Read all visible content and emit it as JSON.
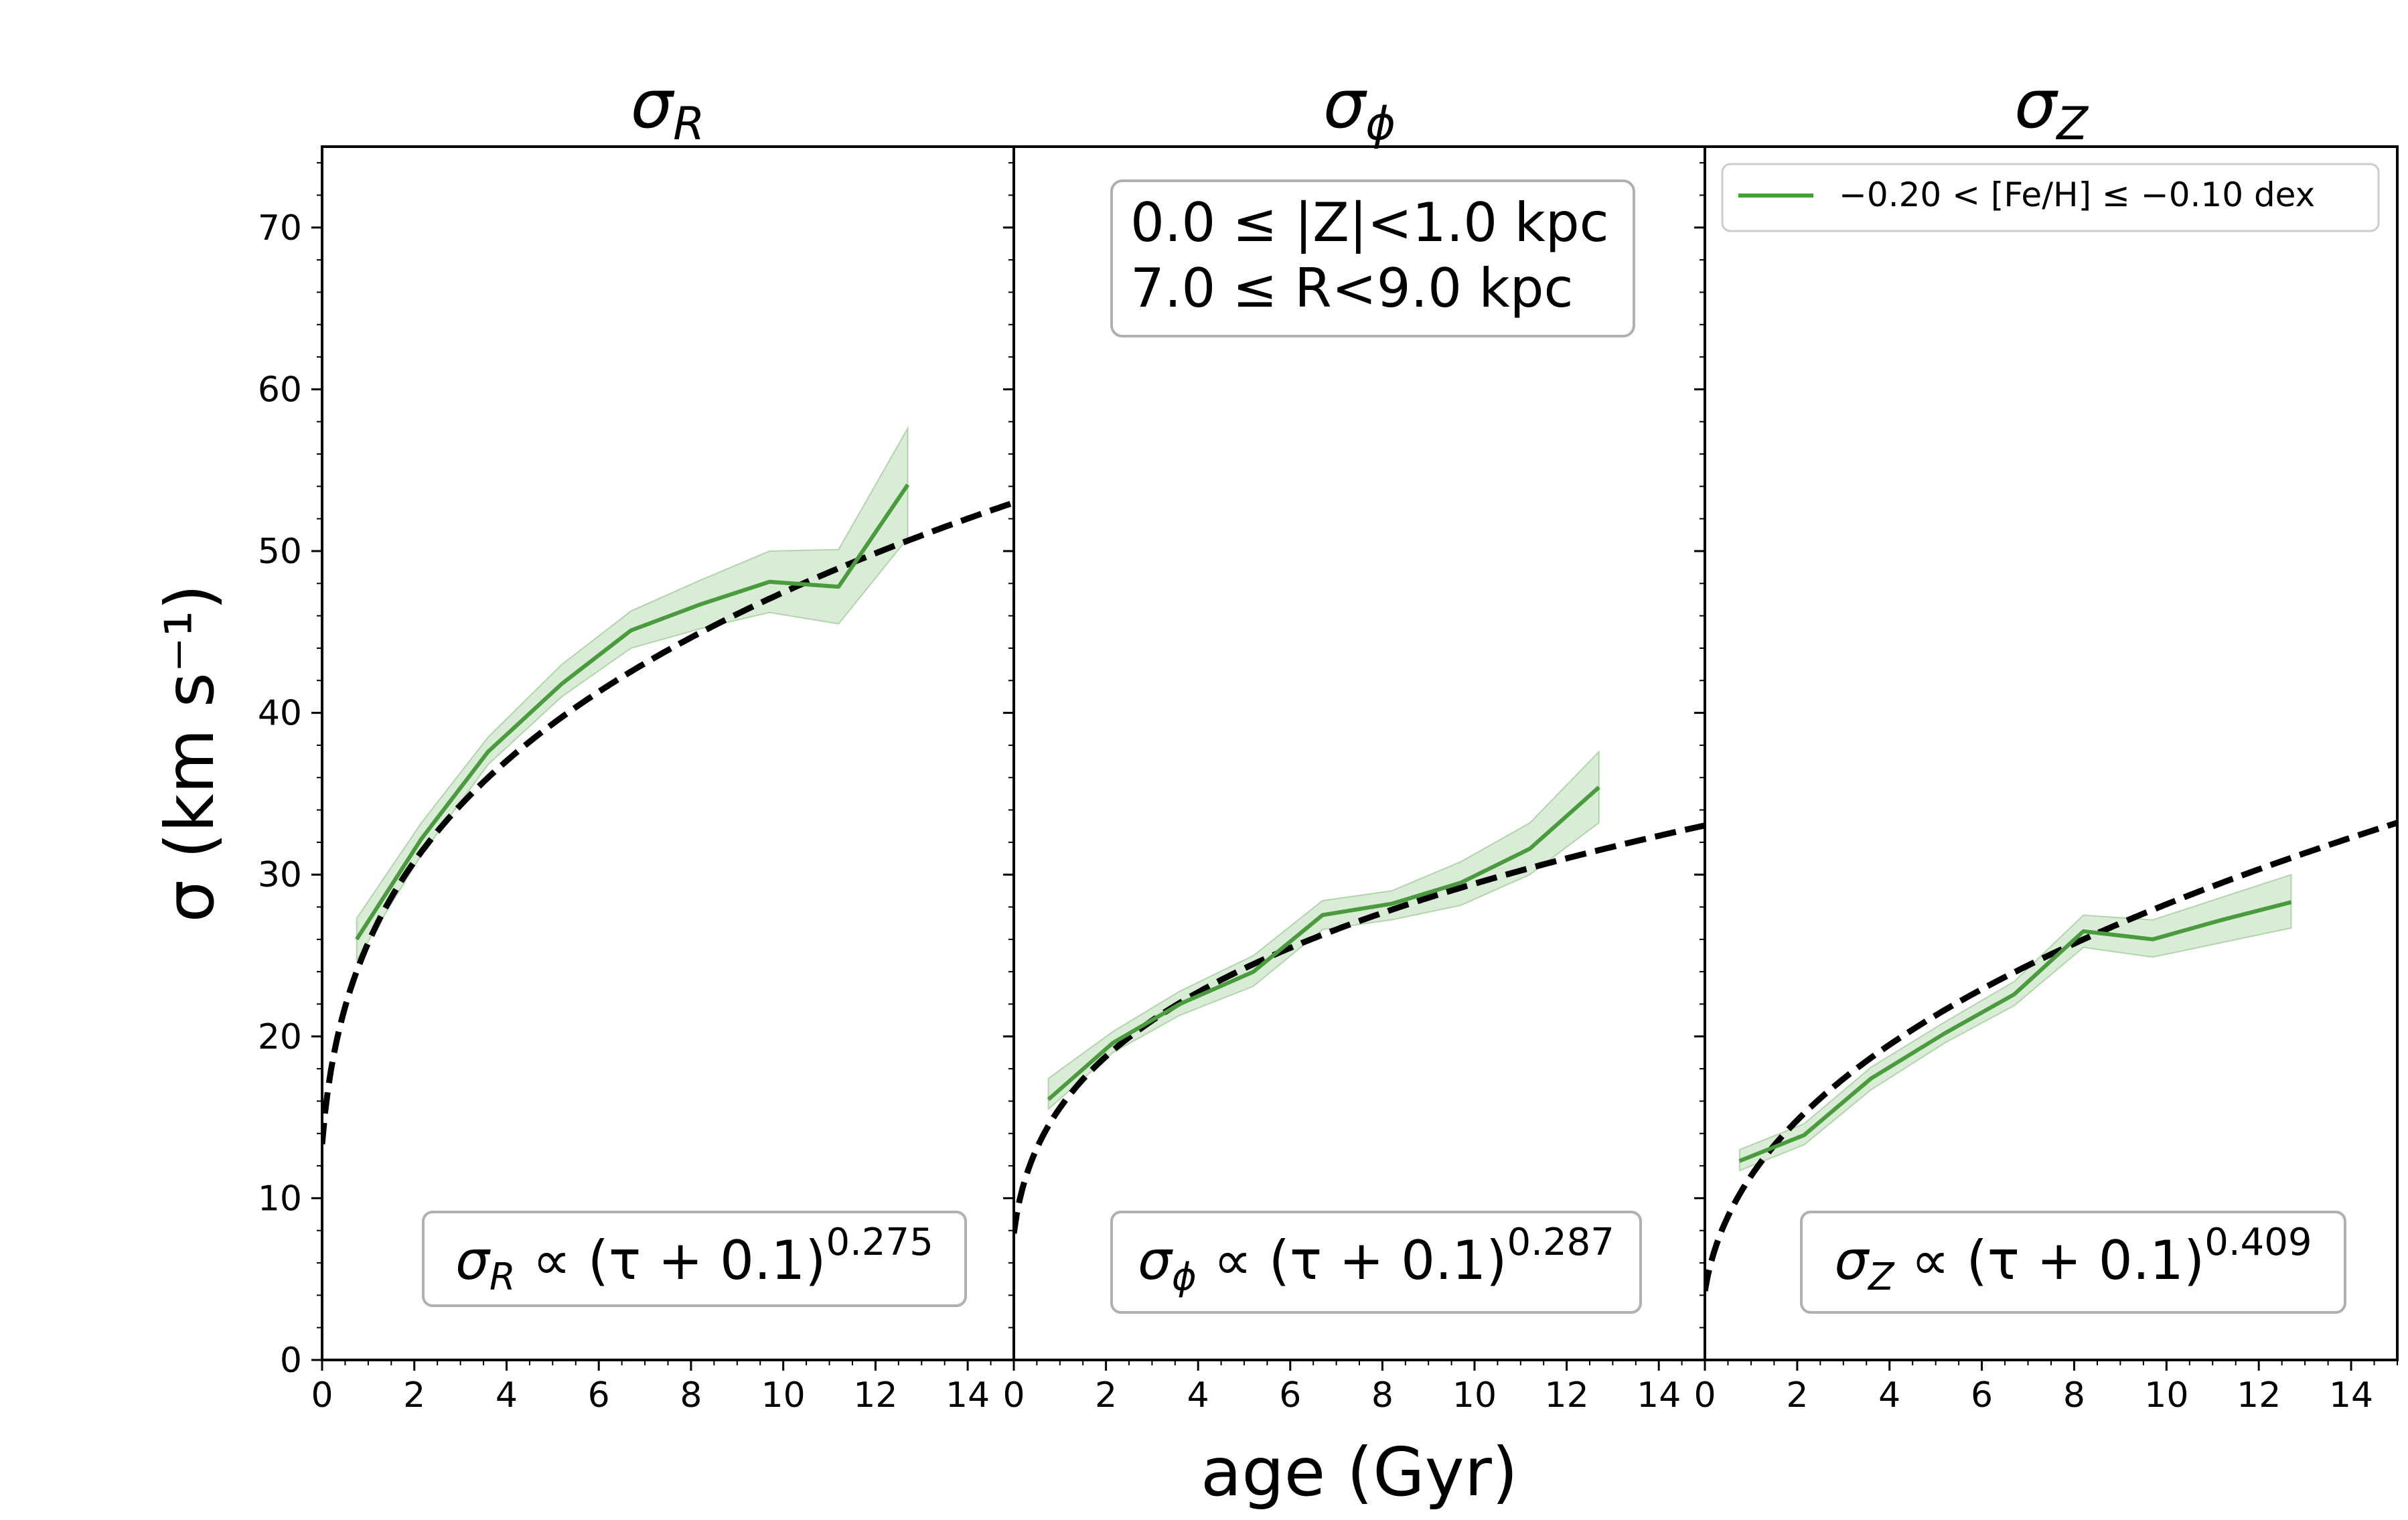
{
  "chart_data": {
    "type": "line",
    "xlabel": "age (Gyr)",
    "ylabel": "σ (km s⁻¹)",
    "ylim": [
      0,
      75
    ],
    "y_ticks": [
      0,
      10,
      20,
      30,
      40,
      50,
      60,
      70
    ],
    "legend": {
      "label": "−0.20 < [Fe/H] ≤ −0.10 dex",
      "location": "top-right",
      "color": "#4a9a3e"
    },
    "annotation": {
      "line1": "0.0 ≤ |Z|<1.0 kpc",
      "line2": "7.0 ≤ R<9.0 kpc"
    },
    "colors": {
      "series": "#4a9a3e",
      "band": "#b9dcb3",
      "fit": "#000000"
    },
    "panels": [
      {
        "title_sym": "σ",
        "title_sub": "R",
        "xlim": [
          0,
          15
        ],
        "x_ticks": [
          0,
          2,
          4,
          6,
          8,
          10,
          12,
          14
        ],
        "formula": {
          "sym": "σ",
          "sub": "R",
          "body": " ∝ (τ + 0.1)",
          "exp": "0.275"
        },
        "fit": {
          "type": "power",
          "offset": 0.1,
          "exponent": 0.275,
          "norm": 25.12
        },
        "series": {
          "name": "−0.20 < [Fe/H] ≤ −0.10 dex",
          "x": [
            0.75,
            2.15,
            3.6,
            5.2,
            6.7,
            8.2,
            9.7,
            11.2,
            12.7
          ],
          "y": [
            26.0,
            32.2,
            37.6,
            41.8,
            45.1,
            46.7,
            48.1,
            47.8,
            54.1
          ],
          "lower": [
            24.7,
            31.2,
            36.8,
            41.0,
            44.0,
            45.2,
            46.2,
            45.5,
            50.8
          ],
          "upper": [
            27.3,
            33.2,
            38.5,
            43.0,
            46.3,
            48.2,
            50.0,
            50.1,
            57.6
          ]
        }
      },
      {
        "title_sym": "σ",
        "title_sub": "ϕ",
        "xlim": [
          0,
          15
        ],
        "x_ticks": [
          0,
          2,
          4,
          6,
          8,
          10,
          12,
          14
        ],
        "formula": {
          "sym": "σ",
          "sub": "ϕ",
          "body": " ∝ (τ + 0.1)",
          "exp": "0.287"
        },
        "fit": {
          "type": "power",
          "offset": 0.1,
          "exponent": 0.287,
          "norm": 15.16
        },
        "series": {
          "name": "−0.20 < [Fe/H] ≤ −0.10 dex",
          "x": [
            0.75,
            2.15,
            3.6,
            5.2,
            6.7,
            8.2,
            9.7,
            11.2,
            12.7
          ],
          "y": [
            16.1,
            19.6,
            22.0,
            24.0,
            27.5,
            28.2,
            29.5,
            31.6,
            35.4
          ],
          "lower": [
            15.5,
            19.0,
            21.3,
            23.1,
            26.6,
            27.2,
            28.1,
            30.0,
            33.2
          ],
          "upper": [
            17.4,
            20.3,
            22.8,
            25.0,
            28.4,
            29.0,
            30.8,
            33.2,
            37.6
          ]
        }
      },
      {
        "title_sym": "σ",
        "title_sub": "Z",
        "xlim": [
          0,
          15
        ],
        "x_ticks": [
          0,
          2,
          4,
          6,
          8,
          10,
          12,
          14
        ],
        "formula": {
          "sym": "σ",
          "sub": "Z",
          "body": " ∝ (τ + 0.1)",
          "exp": "0.409"
        },
        "fit": {
          "type": "power",
          "offset": 0.1,
          "exponent": 0.409,
          "norm": 10.94
        },
        "series": {
          "name": "−0.20 < [Fe/H] ≤ −0.10 dex",
          "x": [
            0.75,
            2.15,
            3.6,
            5.2,
            6.7,
            8.2,
            9.7,
            11.2,
            12.7
          ],
          "y": [
            12.3,
            13.9,
            17.4,
            20.2,
            22.6,
            26.5,
            26.0,
            27.2,
            28.3
          ],
          "lower": [
            11.7,
            13.3,
            16.7,
            19.6,
            21.9,
            25.5,
            24.9,
            25.8,
            26.7
          ],
          "upper": [
            13.0,
            14.6,
            18.1,
            20.9,
            23.4,
            27.5,
            27.2,
            28.6,
            30.0
          ]
        }
      }
    ]
  }
}
